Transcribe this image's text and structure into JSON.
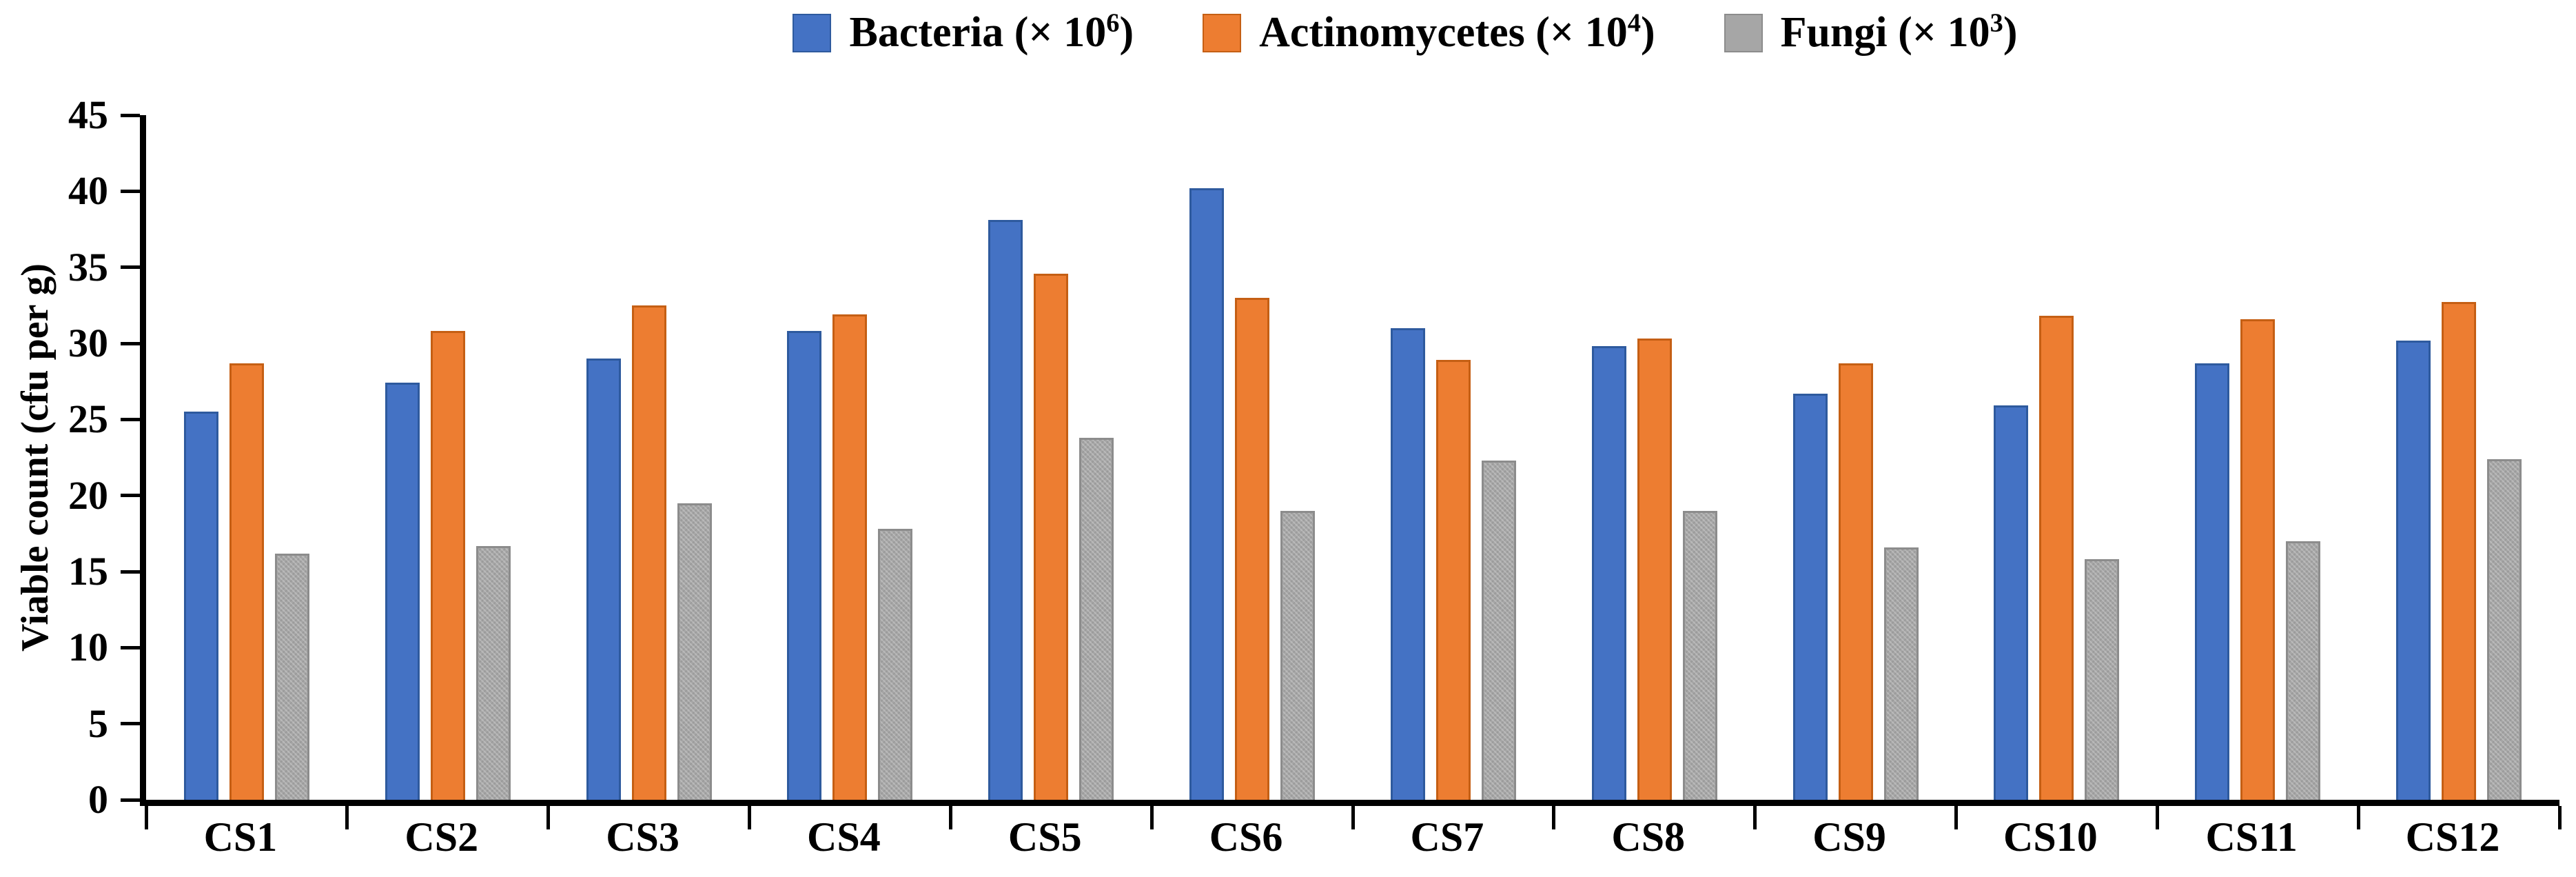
{
  "chart_data": {
    "type": "bar",
    "title": "",
    "xlabel": "",
    "ylabel": "Viable count (cfu per g)",
    "ylim": [
      0,
      45
    ],
    "yticks": [
      0,
      5,
      10,
      15,
      20,
      25,
      30,
      35,
      40,
      45
    ],
    "grid": false,
    "legend_position": "top-center",
    "categories": [
      "CS1",
      "CS2",
      "CS3",
      "CS4",
      "CS5",
      "CS6",
      "CS7",
      "CS8",
      "CS9",
      "CS10",
      "CS11",
      "CS12"
    ],
    "series": [
      {
        "name": "Bacteria",
        "scale_prefix": "(× 10",
        "scale_exponent": "6",
        "scale_suffix": ")",
        "color": "#4472C4",
        "edge_color": "#2E5A9E",
        "textured": false,
        "values": [
          25.5,
          27.4,
          29.0,
          30.8,
          38.1,
          40.2,
          31.0,
          29.8,
          26.7,
          25.9,
          28.7,
          30.2
        ]
      },
      {
        "name": "Actinomycetes",
        "scale_prefix": "(× 10",
        "scale_exponent": "4",
        "scale_suffix": ")",
        "color": "#ED7D31",
        "edge_color": "#C55F14",
        "textured": false,
        "values": [
          28.7,
          30.8,
          32.5,
          31.9,
          34.6,
          33.0,
          28.9,
          30.3,
          28.7,
          31.8,
          31.6,
          32.7
        ]
      },
      {
        "name": "Fungi",
        "scale_prefix": "(× 10",
        "scale_exponent": "3",
        "scale_suffix": ")",
        "color": "#A6A6A6",
        "edge_color": "#8C8C8C",
        "textured": true,
        "values": [
          16.2,
          16.7,
          19.5,
          17.8,
          23.8,
          19.0,
          22.3,
          19.0,
          16.6,
          15.8,
          17.0,
          22.4
        ]
      }
    ],
    "axis_color": "#000000",
    "background_color": "#FFFFFF"
  }
}
